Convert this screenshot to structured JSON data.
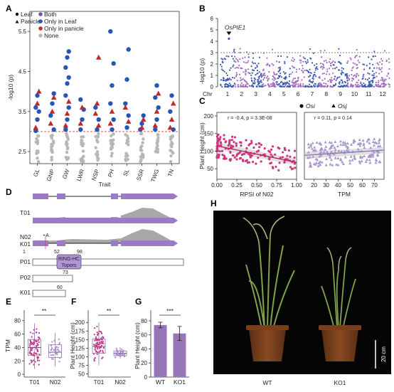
{
  "panels": {
    "A": "A",
    "B": "B",
    "C": "C",
    "D": "D",
    "E": "E",
    "F": "F",
    "G": "G",
    "H": "H"
  },
  "colors": {
    "both": "#6b53a7",
    "leaf": "#2456b8",
    "panicle": "#c0282a",
    "none": "#b7b7b7",
    "manhattan_a": "#3d58b5",
    "manhattan_b": "#a26dbf",
    "osi": "#d1357e",
    "osj": "#a997cc",
    "box": "#a98bc9",
    "bar": "#9676b8",
    "gene": "#9b7bc6",
    "coverage": "#a8a8a8"
  },
  "chart_data": [
    {
      "panel": "A",
      "type": "scatter",
      "ylabel": "-log10 (p)",
      "xlabel": "Trait",
      "categories": [
        "GL",
        "GNP",
        "GW",
        "LWR",
        "NSP",
        "PH",
        "SL",
        "SSR",
        "TWG",
        "TN"
      ],
      "ylim": [
        2.2,
        6.0
      ],
      "yticks": [
        "2.5",
        "3.5",
        "4.5",
        "5.5"
      ],
      "threshold": 3.0,
      "legend": {
        "shape_items": [
          "Leaf",
          "Panicle"
        ],
        "color_items": [
          "Both",
          "Only in Leaf",
          "Only in panicle",
          "None"
        ]
      },
      "series": [
        {
          "name": "Only in Leaf",
          "shape": "circle",
          "color": "leaf",
          "points": [
            [
              "GL",
              3.02
            ],
            [
              "GL",
              3.3
            ],
            [
              "GL",
              3.5
            ],
            [
              "GL",
              3.6
            ],
            [
              "GL",
              3.9
            ],
            [
              "GNP",
              3.05
            ],
            [
              "GNP",
              3.4
            ],
            [
              "GNP",
              3.7
            ],
            [
              "GNP",
              3.95
            ],
            [
              "GW",
              3.05
            ],
            [
              "GW",
              3.3
            ],
            [
              "GW",
              3.6
            ],
            [
              "GW",
              3.9
            ],
            [
              "GW",
              4.2
            ],
            [
              "GW",
              4.35
            ],
            [
              "GW",
              4.6
            ],
            [
              "GW",
              4.85
            ],
            [
              "GW",
              5.0
            ],
            [
              "LWR",
              3.05
            ],
            [
              "LWR",
              3.3
            ],
            [
              "LWR",
              3.55
            ],
            [
              "LWR",
              3.8
            ],
            [
              "NSP",
              3.05
            ],
            [
              "NSP",
              3.3
            ],
            [
              "NSP",
              3.6
            ],
            [
              "PH",
              3.05
            ],
            [
              "PH",
              3.3
            ],
            [
              "PH",
              3.7
            ],
            [
              "PH",
              4.15
            ],
            [
              "PH",
              4.7
            ],
            [
              "PH",
              5.5
            ],
            [
              "SL",
              3.1
            ],
            [
              "SL",
              3.4
            ],
            [
              "SL",
              3.7
            ],
            [
              "SL",
              4.3
            ],
            [
              "SL",
              5.05
            ],
            [
              "SSR",
              3.05
            ],
            [
              "SSR",
              3.2
            ],
            [
              "SSR",
              3.4
            ],
            [
              "TWG",
              3.05
            ],
            [
              "TWG",
              3.3
            ],
            [
              "TWG",
              3.6
            ],
            [
              "TWG",
              3.85
            ],
            [
              "TWG",
              4.15
            ],
            [
              "TN",
              3.05
            ],
            [
              "TN",
              3.5
            ],
            [
              "TN",
              3.9
            ]
          ]
        },
        {
          "name": "Only in panicle",
          "shape": "triangle",
          "color": "panicle",
          "points": [
            [
              "GL",
              3.1
            ],
            [
              "GL",
              3.7
            ],
            [
              "GL",
              4.0
            ],
            [
              "GNP",
              3.2
            ],
            [
              "GNP",
              3.5
            ],
            [
              "GNP",
              3.85
            ],
            [
              "GW",
              3.15
            ],
            [
              "GW",
              3.45
            ],
            [
              "GW",
              3.75
            ],
            [
              "LWR",
              3.2
            ],
            [
              "LWR",
              3.6
            ],
            [
              "NSP",
              3.15
            ],
            [
              "NSP",
              3.45
            ],
            [
              "NSP",
              3.7
            ],
            [
              "NSP",
              4.85
            ],
            [
              "PH",
              3.2
            ],
            [
              "PH",
              3.5
            ],
            [
              "SL",
              3.25
            ],
            [
              "SL",
              3.6
            ],
            [
              "SSR",
              3.1
            ],
            [
              "SSR",
              3.3
            ],
            [
              "TWG",
              3.15
            ],
            [
              "TWG",
              3.5
            ],
            [
              "TWG",
              3.95
            ],
            [
              "TN",
              3.1
            ],
            [
              "TN",
              3.3
            ],
            [
              "TN",
              3.7
            ]
          ]
        },
        {
          "name": "None",
          "shape": "circle",
          "color": "none",
          "points": "below-threshold"
        }
      ]
    },
    {
      "panel": "B",
      "type": "scatter",
      "ylabel": "-log10 (p)",
      "xlabel": "Chr",
      "categories": [
        "1",
        "2",
        "3",
        "4",
        "5",
        "6",
        "7",
        "8",
        "9",
        "10",
        "11",
        "12"
      ],
      "ylim": [
        0,
        6
      ],
      "yticks": [
        "0",
        "1",
        "2",
        "3",
        "4",
        "5",
        "6"
      ],
      "threshold": 3.0,
      "annotation": "OsPIE1",
      "annotation_chr": "1",
      "annotation_value": 4.6
    },
    {
      "panel": "C",
      "type": "scatter",
      "ylabel": "Plant Height (cm)",
      "legend": [
        "Osi",
        "Osj"
      ],
      "subplots": [
        {
          "name": "Osi",
          "xlabel": "RPSI of N02",
          "xlim": [
            0,
            1.0
          ],
          "ylim": [
            20,
            210
          ],
          "xticks": [
            "0.00",
            "0.25",
            "0.50",
            "0.75",
            "1.00"
          ],
          "yticks": [
            "50",
            "100",
            "150",
            "200"
          ],
          "stat": "r = -0.4, p = 3.3E-08",
          "fit": [
            [
              0.0,
              115
            ],
            [
              1.0,
              68
            ]
          ]
        },
        {
          "name": "Osj",
          "xlabel": "TPM",
          "xlim": [
            12,
            78
          ],
          "ylim": [
            20,
            210
          ],
          "xticks": [
            "20",
            "30",
            "40",
            "50",
            "60",
            "70"
          ],
          "stat": "r = 0.11, p = 0.14",
          "fit": [
            [
              12,
              88
            ],
            [
              78,
              103
            ]
          ]
        }
      ]
    },
    {
      "panel": "D",
      "type": "diagram",
      "tracks": [
        "T01",
        "N02",
        "K01"
      ],
      "insertion_label": "+A",
      "proteins": [
        {
          "name": "P01",
          "domain_label": [
            "RING-HC",
            "Topors"
          ],
          "start": "1",
          "domain_start": "52",
          "domain_end": "98"
        },
        {
          "name": "P02",
          "end": "73"
        },
        {
          "name": "K01",
          "end": "60"
        }
      ]
    },
    {
      "panel": "E",
      "type": "box",
      "ylabel": "TPM",
      "categories": [
        "T01",
        "N02"
      ],
      "ylim": [
        -2,
        85
      ],
      "yticks": [
        "0",
        "20",
        "40",
        "60",
        "80"
      ],
      "significance": "**",
      "boxes": [
        {
          "q1": 28,
          "median": 40,
          "q3": 52,
          "min": 8,
          "max": 76
        },
        {
          "q1": 25,
          "median": 33,
          "q3": 44,
          "min": 12,
          "max": 62
        }
      ]
    },
    {
      "panel": "F",
      "type": "box",
      "ylabel": "Plant Height (cm)",
      "categories": [
        "T01",
        "N02"
      ],
      "ylim": [
        45,
        215
      ],
      "yticks": [
        "50",
        "75",
        "100",
        "125",
        "150",
        "175",
        "200"
      ],
      "significance": "**",
      "boxes": [
        {
          "q1": 110,
          "median": 130,
          "q3": 152,
          "min": 75,
          "max": 200
        },
        {
          "q1": 103,
          "median": 110,
          "q3": 117,
          "min": 95,
          "max": 128
        }
      ]
    },
    {
      "panel": "G",
      "type": "bar",
      "ylabel": "Plant Height (cm)",
      "categories": [
        "WT",
        "KO1"
      ],
      "values": [
        74,
        62
      ],
      "errors": [
        4,
        10
      ],
      "ylim": [
        0,
        85
      ],
      "yticks": [
        "0",
        "20",
        "40",
        "60",
        "80"
      ],
      "significance": "***"
    }
  ],
  "photo": {
    "labels": [
      "WT",
      "KO1"
    ],
    "scale": "20 cm"
  }
}
